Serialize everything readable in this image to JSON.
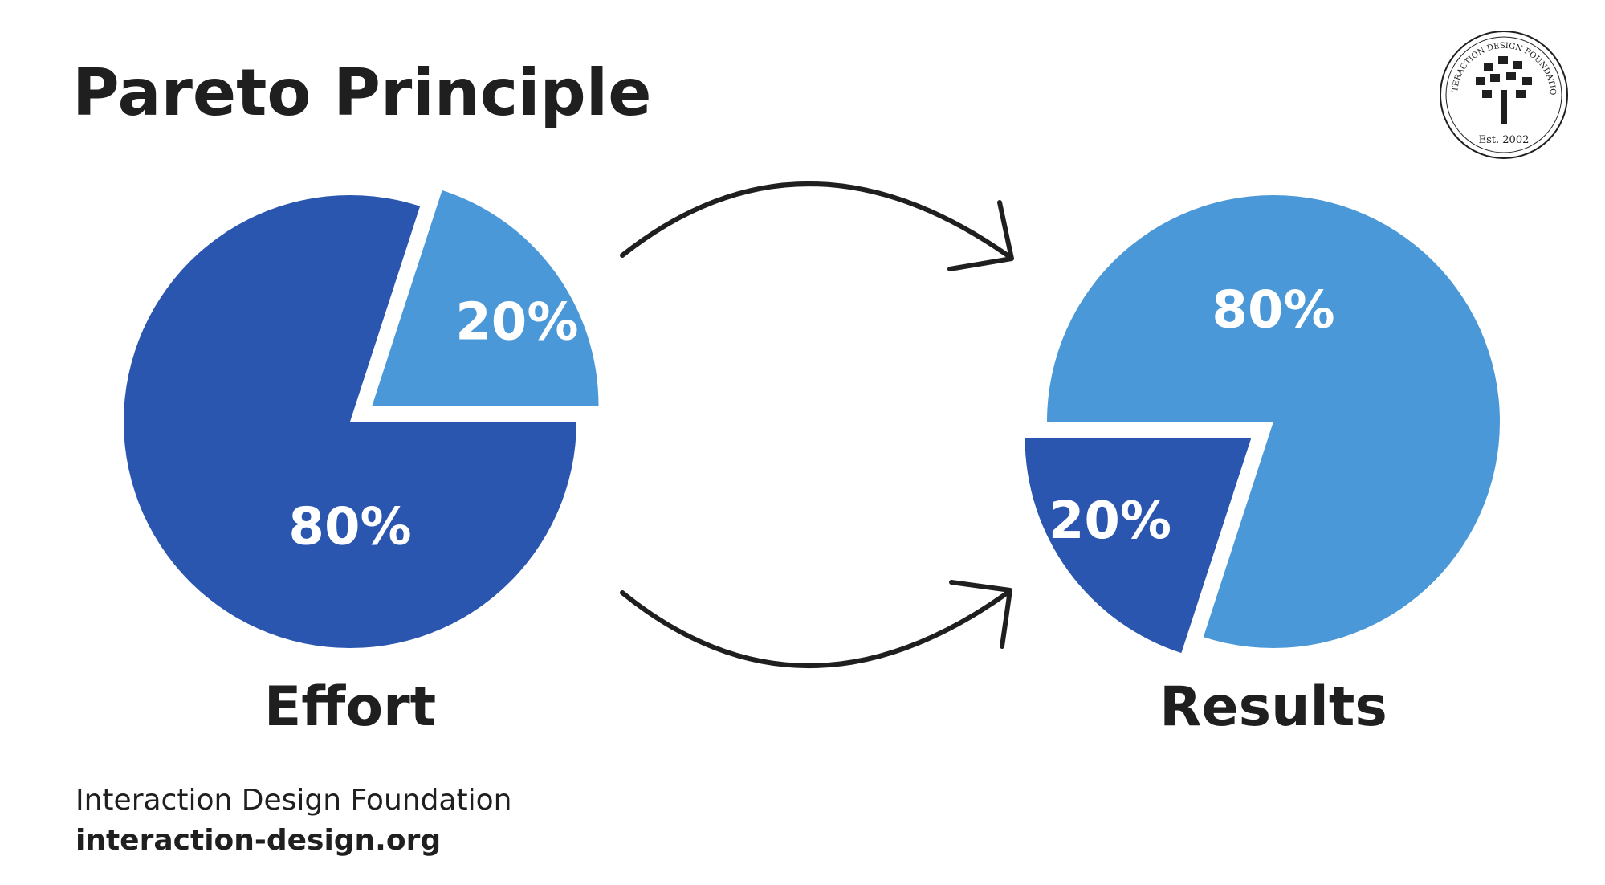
{
  "title": "Pareto Principle",
  "chart_data": [
    {
      "type": "pie",
      "title": "Effort",
      "values": [
        20,
        80
      ],
      "value_labels": [
        "20%",
        "80%"
      ],
      "colors": [
        "#4a98d8",
        "#2a56b0"
      ]
    },
    {
      "type": "pie",
      "title": "Results",
      "values": [
        20,
        80
      ],
      "value_labels": [
        "20%",
        "80%"
      ],
      "colors": [
        "#2a56b0",
        "#4a98d8"
      ]
    }
  ],
  "footer": {
    "name": "Interaction Design Foundation",
    "url": "interaction-design.org"
  },
  "logo": {
    "name": "INTERACTION DESIGN FOUNDATION",
    "est": "Est. 2002"
  }
}
